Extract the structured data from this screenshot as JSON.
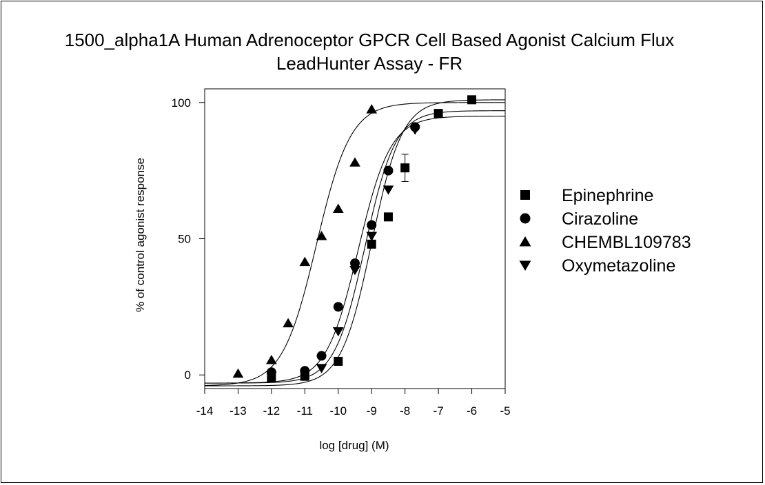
{
  "chart_data": {
    "type": "scatter",
    "title_line1": "1500_alpha1A Human Adrenoceptor GPCR Cell Based Agonist Calcium Flux",
    "title_line2": "LeadHunter Assay - FR",
    "xlabel": "log [drug] (M)",
    "ylabel": "% of control agonist response",
    "xlim": [
      -14,
      -5
    ],
    "ylim": [
      -5,
      105
    ],
    "xticks": [
      -14,
      -13,
      -12,
      -11,
      -10,
      -9,
      -8,
      -7,
      -6,
      -5
    ],
    "yticks": [
      0,
      50,
      100
    ],
    "grid": false,
    "legend_position": "right",
    "series": [
      {
        "name": "Epinephrine",
        "marker": "square",
        "x": [
          -12,
          -11,
          -10,
          -9,
          -8.5,
          -8,
          -7,
          -6
        ],
        "y": [
          -1,
          -0.5,
          5,
          48,
          58,
          76,
          96,
          101
        ],
        "fit": {
          "bottom": -4,
          "top": 101,
          "logEC50": -9.0,
          "hill": 0.95
        }
      },
      {
        "name": "Cirazoline",
        "marker": "circle",
        "x": [
          -12,
          -11,
          -10.5,
          -10,
          -9.5,
          -9,
          -8.5,
          -7.7
        ],
        "y": [
          1,
          1.5,
          7,
          25,
          41,
          55,
          75,
          91
        ],
        "fit": {
          "bottom": -3,
          "top": 95,
          "logEC50": -9.4,
          "hill": 0.9
        }
      },
      {
        "name": "CHEMBL109783",
        "marker": "triangle-up",
        "x": [
          -13,
          -12,
          -11.5,
          -11,
          -10.5,
          -10,
          -9.5,
          -9
        ],
        "y": [
          0.5,
          5.5,
          19,
          41.5,
          51,
          61,
          78,
          97.5
        ],
        "fit": {
          "bottom": -4,
          "top": 100,
          "logEC50": -10.65,
          "hill": 0.85
        }
      },
      {
        "name": "Oxymetazoline",
        "marker": "triangle-down",
        "x": [
          -10.5,
          -10,
          -9.5,
          -9,
          -8.5,
          -7.7
        ],
        "y": [
          2.5,
          16,
          38.5,
          51,
          68,
          90
        ],
        "fit": {
          "bottom": -3,
          "top": 97,
          "logEC50": -9.2,
          "hill": 0.95
        }
      }
    ],
    "error_bars": [
      {
        "series": "Epinephrine",
        "x": -8,
        "y": 76,
        "err": 5
      }
    ]
  }
}
